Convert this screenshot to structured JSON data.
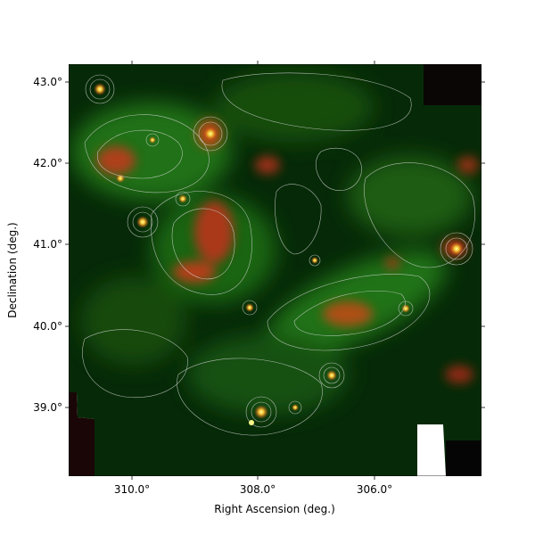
{
  "figure": {
    "xlabel": "Right Ascension (deg.)",
    "ylabel": "Declination (deg.)",
    "x_ticks": [
      "310.0°",
      "308.0°",
      "306.0°"
    ],
    "y_ticks": [
      "43.0°",
      "42.0°",
      "41.0°",
      "40.0°",
      "39.0°"
    ]
  },
  "image": {
    "colors": {
      "background": "#031d05",
      "green_emission": "#1e7a12",
      "red_emission": "#d23a1a",
      "hot_source": "#f2f25a",
      "contour": "#d8d8d8"
    }
  }
}
